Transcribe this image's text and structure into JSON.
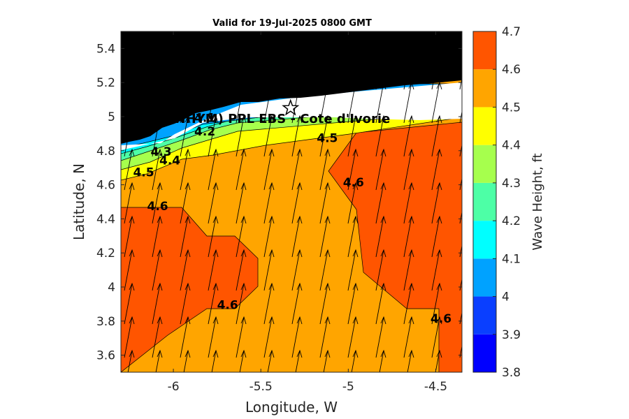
{
  "chart_data": {
    "type": "filled-contour",
    "title": "Valid for 19-Jul-2025 0800 GMT",
    "xlabel": "Longitude, W",
    "ylabel": "Latitude, N",
    "xlim": [
      -6.3,
      -4.35
    ],
    "ylim": [
      3.5,
      5.5
    ],
    "xticks": [
      -6,
      -5.5,
      -5,
      -4.5
    ],
    "xtick_labels": [
      "-6",
      "-5.5",
      "-5",
      "-4.5"
    ],
    "yticks": [
      3.6,
      3.8,
      4.0,
      4.2,
      4.4,
      4.6,
      4.8,
      5.0,
      5.2,
      5.4
    ],
    "ytick_labels": [
      "3.6",
      "3.8",
      "4",
      "4.2",
      "4.4",
      "4.6",
      "4.8",
      "5",
      "5.2",
      "5.4"
    ],
    "colorbar": {
      "label": "Wave Height, ft",
      "levels": [
        3.8,
        3.9,
        4.0,
        4.1,
        4.2,
        4.3,
        4.4,
        4.5,
        4.6,
        4.7
      ],
      "level_labels": [
        "3.8",
        "3.9",
        "4",
        "4.1",
        "4.2",
        "4.3",
        "4.4",
        "4.5",
        "4.6",
        "4.7"
      ],
      "colors": [
        "#0000ff",
        "#0a3fff",
        "#00a2ff",
        "#00ffff",
        "#4dffa6",
        "#a6ff4d",
        "#ffff00",
        "#ffa500",
        "#ff5500"
      ]
    },
    "site_label": "(ONHYM) PPL EBS  - Cote d'Ivorie",
    "site_marker": {
      "lon": -5.33,
      "lat": 5.05
    },
    "contour_labels": [
      {
        "text": "4.3",
        "lon": -6.07,
        "lat": 4.77
      },
      {
        "text": "4.4",
        "lon": -6.02,
        "lat": 4.72
      },
      {
        "text": "4.5",
        "lon": -6.17,
        "lat": 4.65
      },
      {
        "text": "4.2",
        "lon": -5.82,
        "lat": 4.89
      },
      {
        "text": "4.1",
        "lon": -5.82,
        "lat": 4.97
      },
      {
        "text": "4.5",
        "lon": -5.12,
        "lat": 4.85
      },
      {
        "text": "4.6",
        "lon": -6.09,
        "lat": 4.45
      },
      {
        "text": "4.6",
        "lon": -5.69,
        "lat": 3.87
      },
      {
        "text": "4.6",
        "lon": -4.97,
        "lat": 4.59
      },
      {
        "text": "4.6",
        "lon": -4.47,
        "lat": 3.79
      }
    ],
    "wave_direction": "waves propagating toward north-northeast"
  },
  "colors": {
    "land": "#000000",
    "coast_white": "#ffffff",
    "level_4_5": "#ffa500",
    "level_4_6": "#ff5500"
  }
}
